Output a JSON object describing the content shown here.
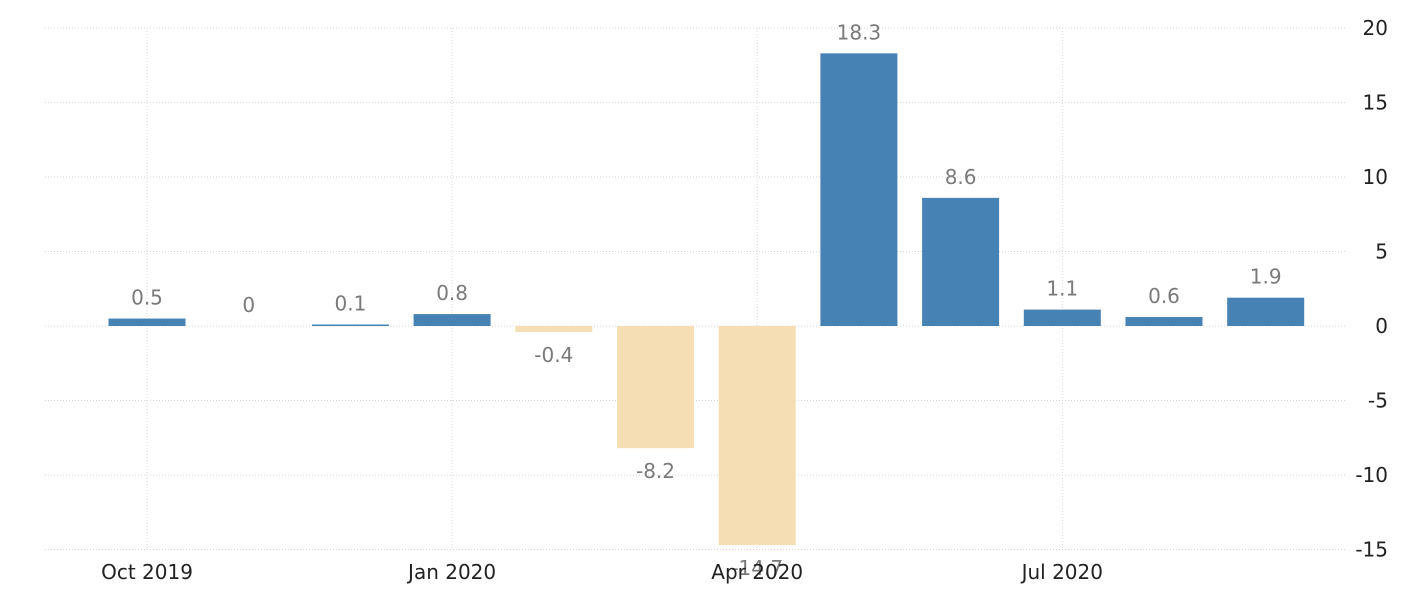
{
  "chart_data": {
    "type": "bar",
    "categories": [
      "Oct 2019",
      "Nov 2019",
      "Dec 2019",
      "Jan 2020",
      "Feb 2020",
      "Mar 2020",
      "Apr 2020",
      "May 2020",
      "Jun 2020",
      "Jul 2020",
      "Aug 2020",
      "Sep 2020"
    ],
    "values": [
      0.5,
      0,
      0.1,
      0.8,
      -0.4,
      -8.2,
      -14.7,
      18.3,
      8.6,
      1.1,
      0.6,
      1.9
    ],
    "data_labels": [
      "0.5",
      "0",
      "0.1",
      "0.8",
      "-0.4",
      "-8.2",
      "-14.7",
      "18.3",
      "8.6",
      "1.1",
      "0.6",
      "1.9"
    ],
    "x_ticks": [
      "Oct 2019",
      "Jan 2020",
      "Apr 2020",
      "Jul 2020"
    ],
    "y_ticks": [
      20,
      15,
      10,
      5,
      0,
      -5,
      -10,
      -15
    ],
    "ylim": [
      -15,
      20
    ],
    "y_axis_side": "right",
    "grid": true,
    "colors": {
      "positive": "#4682b4",
      "negative": "#f5deb3"
    }
  }
}
